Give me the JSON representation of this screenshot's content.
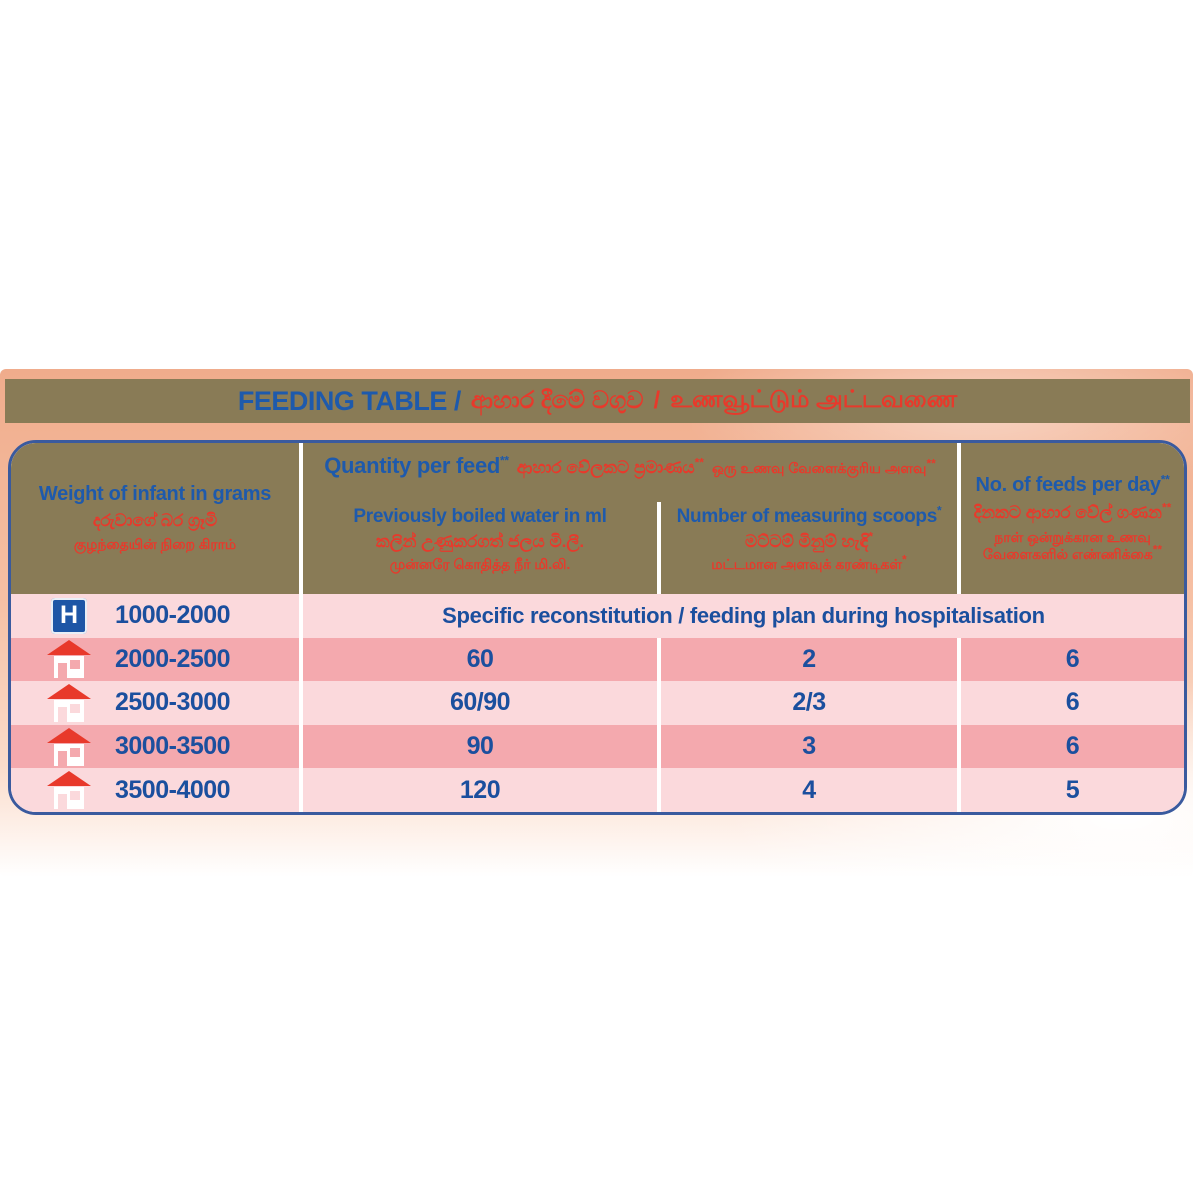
{
  "title_bar": {
    "en": "FEEDING TABLE /",
    "si": "ආහාර දීමේ වගුව",
    "separator": "/",
    "ta": "உணவூட்டும் அட்டவணை"
  },
  "colors": {
    "olive_header": "#897b56",
    "blue_text": "#1e5aac",
    "red_text": "#e8392b",
    "row_light": "#fbd9dc",
    "row_dark": "#f4a9ae",
    "table_border": "#3a5a9e",
    "backdrop_peach": "#f0ac8c"
  },
  "table": {
    "header": {
      "weight": {
        "en": "Weight of infant in grams",
        "si": "දරුවාගේ බර ග්‍රෑමි",
        "ta": "குழந்தையின் நிறை கிராம்"
      },
      "quantity_group": {
        "en": "Quantity per feed",
        "en_marker": "**",
        "si": "ආහාර වේලකට ප්‍රමාණය",
        "si_marker": "**",
        "ta": "ஒரு உணவு வேளைக்குரிய அளவு",
        "ta_marker": "**"
      },
      "water": {
        "en": "Previously boiled water in ml",
        "si": "කලින් උණුකරගත් ජලය මි.ලී.",
        "ta": "முன்னரே கொதித்த நீர் மி.லி."
      },
      "scoops": {
        "en": "Number of measuring scoops",
        "en_marker": "*",
        "si": "මට්ටම් මිනුම් හැඳි",
        "si_marker": "*",
        "ta": "மட்டமான அளவுக் கரண்டிகள்",
        "ta_marker": "*"
      },
      "feeds": {
        "en": "No. of feeds per day",
        "en_marker": "**",
        "si": "දිනකට ආහාර වේල් ගණන",
        "si_marker": "**",
        "ta": "நாள் ஒன்றுக்கான உணவு வேளைகளில் எண்ணிக்கை",
        "ta_marker": "**"
      }
    },
    "rows": [
      {
        "icon": "hospital",
        "icon_letter": "H",
        "weight": "1000-2000",
        "span_text": "Specific reconstitution / feeding plan during hospitalisation"
      },
      {
        "icon": "house",
        "weight": "2000-2500",
        "water": "60",
        "scoops": "2",
        "feeds": "6"
      },
      {
        "icon": "house",
        "weight": "2500-3000",
        "water": "60/90",
        "scoops": "2/3",
        "feeds": "6"
      },
      {
        "icon": "house",
        "weight": "3000-3500",
        "water": "90",
        "scoops": "3",
        "feeds": "6"
      },
      {
        "icon": "house",
        "weight": "3500-4000",
        "water": "120",
        "scoops": "4",
        "feeds": "5"
      }
    ]
  }
}
